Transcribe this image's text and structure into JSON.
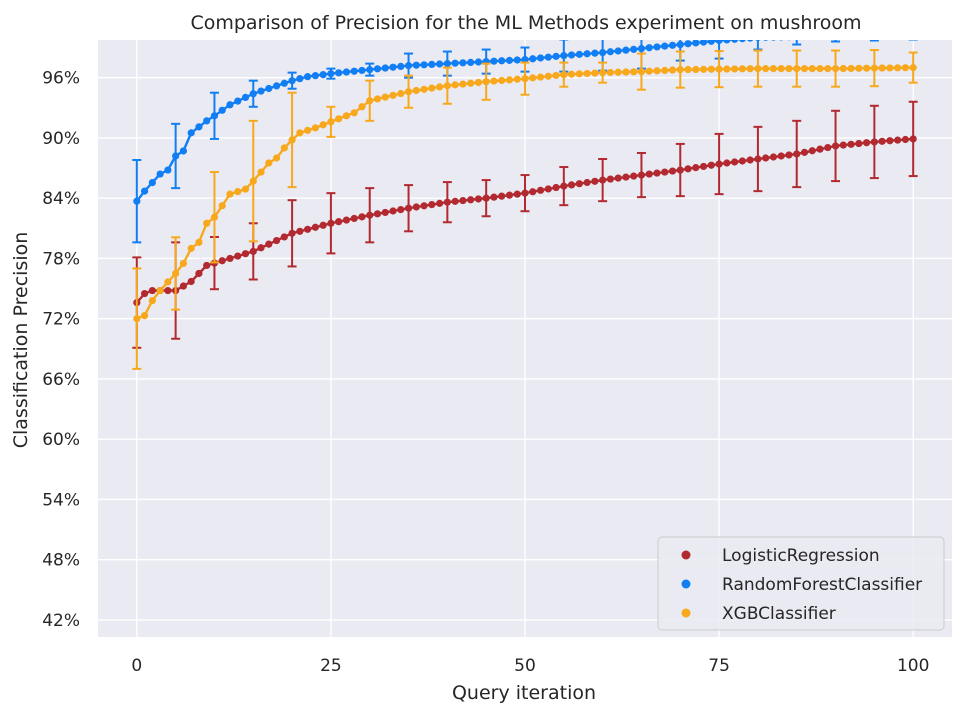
{
  "chart_data": {
    "type": "line",
    "title": "Comparison of Precision for the ML Methods experiment on mushroom",
    "xlabel": "Query iteration",
    "ylabel": "Classification Precision",
    "xlim": [
      -5,
      105
    ],
    "ylim": [
      0.403,
      0.9975
    ],
    "xticks": [
      0,
      25,
      50,
      75,
      100
    ],
    "yticks": [
      0.42,
      0.48,
      0.54,
      0.6,
      0.66,
      0.72,
      0.78,
      0.84,
      0.9,
      0.96
    ],
    "ytick_labels": [
      "42%",
      "48%",
      "54%",
      "60%",
      "66%",
      "72%",
      "78%",
      "84%",
      "90%",
      "96%"
    ],
    "grid": true,
    "background": "#eaeaf2",
    "legend_position": "lower-right",
    "error_bar_every": 5,
    "series": [
      {
        "name": "LogisticRegression",
        "color": "#b22a30",
        "key_points": [
          [
            0,
            0.736
          ],
          [
            1,
            0.745
          ],
          [
            2,
            0.748
          ],
          [
            5,
            0.748
          ],
          [
            7,
            0.757
          ],
          [
            9,
            0.773
          ],
          [
            12,
            0.78
          ],
          [
            15,
            0.787
          ],
          [
            20,
            0.805
          ],
          [
            25,
            0.815
          ],
          [
            30,
            0.823
          ],
          [
            35,
            0.83
          ],
          [
            40,
            0.836
          ],
          [
            45,
            0.84
          ],
          [
            50,
            0.845
          ],
          [
            55,
            0.852
          ],
          [
            60,
            0.858
          ],
          [
            65,
            0.863
          ],
          [
            70,
            0.868
          ],
          [
            75,
            0.874
          ],
          [
            80,
            0.879
          ],
          [
            85,
            0.884
          ],
          [
            90,
            0.892
          ],
          [
            95,
            0.896
          ],
          [
            100,
            0.899
          ]
        ],
        "error": [
          [
            0,
            0.045
          ],
          [
            5,
            0.048
          ],
          [
            10,
            0.026
          ],
          [
            15,
            0.028
          ],
          [
            20,
            0.033
          ],
          [
            25,
            0.03
          ],
          [
            30,
            0.027
          ],
          [
            35,
            0.023
          ],
          [
            40,
            0.02
          ],
          [
            45,
            0.018
          ],
          [
            50,
            0.018
          ],
          [
            55,
            0.019
          ],
          [
            60,
            0.021
          ],
          [
            65,
            0.022
          ],
          [
            70,
            0.026
          ],
          [
            75,
            0.03
          ],
          [
            80,
            0.032
          ],
          [
            85,
            0.033
          ],
          [
            90,
            0.035
          ],
          [
            95,
            0.036
          ],
          [
            100,
            0.037
          ]
        ]
      },
      {
        "name": "RandomForestClassifier",
        "color": "#117ef4",
        "key_points": [
          [
            0,
            0.837
          ],
          [
            1,
            0.847
          ],
          [
            3,
            0.864
          ],
          [
            4,
            0.868
          ],
          [
            5,
            0.882
          ],
          [
            6,
            0.887
          ],
          [
            7,
            0.905
          ],
          [
            9,
            0.917
          ],
          [
            10,
            0.922
          ],
          [
            12,
            0.933
          ],
          [
            15,
            0.944
          ],
          [
            20,
            0.957
          ],
          [
            22,
            0.961
          ],
          [
            25,
            0.964
          ],
          [
            30,
            0.968
          ],
          [
            35,
            0.972
          ],
          [
            40,
            0.974
          ],
          [
            45,
            0.976
          ],
          [
            50,
            0.978
          ],
          [
            55,
            0.982
          ],
          [
            60,
            0.985
          ],
          [
            65,
            0.989
          ],
          [
            70,
            0.993
          ],
          [
            75,
            0.997
          ],
          [
            80,
            1.0
          ],
          [
            90,
            1.002
          ],
          [
            100,
            1.002
          ]
        ],
        "error": [
          [
            0,
            0.041
          ],
          [
            5,
            0.032
          ],
          [
            10,
            0.023
          ],
          [
            15,
            0.013
          ],
          [
            20,
            0.008
          ],
          [
            25,
            0.005
          ],
          [
            30,
            0.006
          ],
          [
            35,
            0.012
          ],
          [
            40,
            0.012
          ],
          [
            45,
            0.012
          ],
          [
            50,
            0.012
          ],
          [
            55,
            0.016
          ],
          [
            60,
            0.018
          ],
          [
            65,
            0.02
          ],
          [
            70,
            0.016
          ],
          [
            75,
            0.018
          ],
          [
            80,
            0.012
          ],
          [
            85,
            0.008
          ],
          [
            90,
            0.006
          ],
          [
            95,
            0.005
          ],
          [
            100,
            0.004
          ]
        ]
      },
      {
        "name": "XGBClassifier",
        "color": "#f8a81c",
        "key_points": [
          [
            0,
            0.72
          ],
          [
            1,
            0.723
          ],
          [
            2,
            0.738
          ],
          [
            3,
            0.748
          ],
          [
            5,
            0.765
          ],
          [
            6,
            0.775
          ],
          [
            7,
            0.79
          ],
          [
            8,
            0.796
          ],
          [
            9,
            0.815
          ],
          [
            10,
            0.821
          ],
          [
            12,
            0.844
          ],
          [
            14,
            0.849
          ],
          [
            15,
            0.857
          ],
          [
            16,
            0.866
          ],
          [
            17,
            0.875
          ],
          [
            18,
            0.88
          ],
          [
            19,
            0.89
          ],
          [
            20,
            0.898
          ],
          [
            21,
            0.905
          ],
          [
            23,
            0.91
          ],
          [
            25,
            0.916
          ],
          [
            28,
            0.925
          ],
          [
            30,
            0.937
          ],
          [
            35,
            0.946
          ],
          [
            40,
            0.952
          ],
          [
            45,
            0.956
          ],
          [
            50,
            0.959
          ],
          [
            55,
            0.963
          ],
          [
            60,
            0.965
          ],
          [
            65,
            0.966
          ],
          [
            70,
            0.968
          ],
          [
            80,
            0.969
          ],
          [
            90,
            0.969
          ],
          [
            100,
            0.97
          ]
        ],
        "error": [
          [
            0,
            0.05
          ],
          [
            5,
            0.036
          ],
          [
            10,
            0.045
          ],
          [
            15,
            0.06
          ],
          [
            20,
            0.047
          ],
          [
            25,
            0.015
          ],
          [
            30,
            0.02
          ],
          [
            35,
            0.016
          ],
          [
            40,
            0.018
          ],
          [
            45,
            0.018
          ],
          [
            50,
            0.016
          ],
          [
            55,
            0.012
          ],
          [
            60,
            0.01
          ],
          [
            65,
            0.018
          ],
          [
            70,
            0.018
          ],
          [
            75,
            0.018
          ],
          [
            80,
            0.018
          ],
          [
            85,
            0.018
          ],
          [
            90,
            0.018
          ],
          [
            95,
            0.018
          ],
          [
            100,
            0.015
          ]
        ]
      }
    ]
  }
}
